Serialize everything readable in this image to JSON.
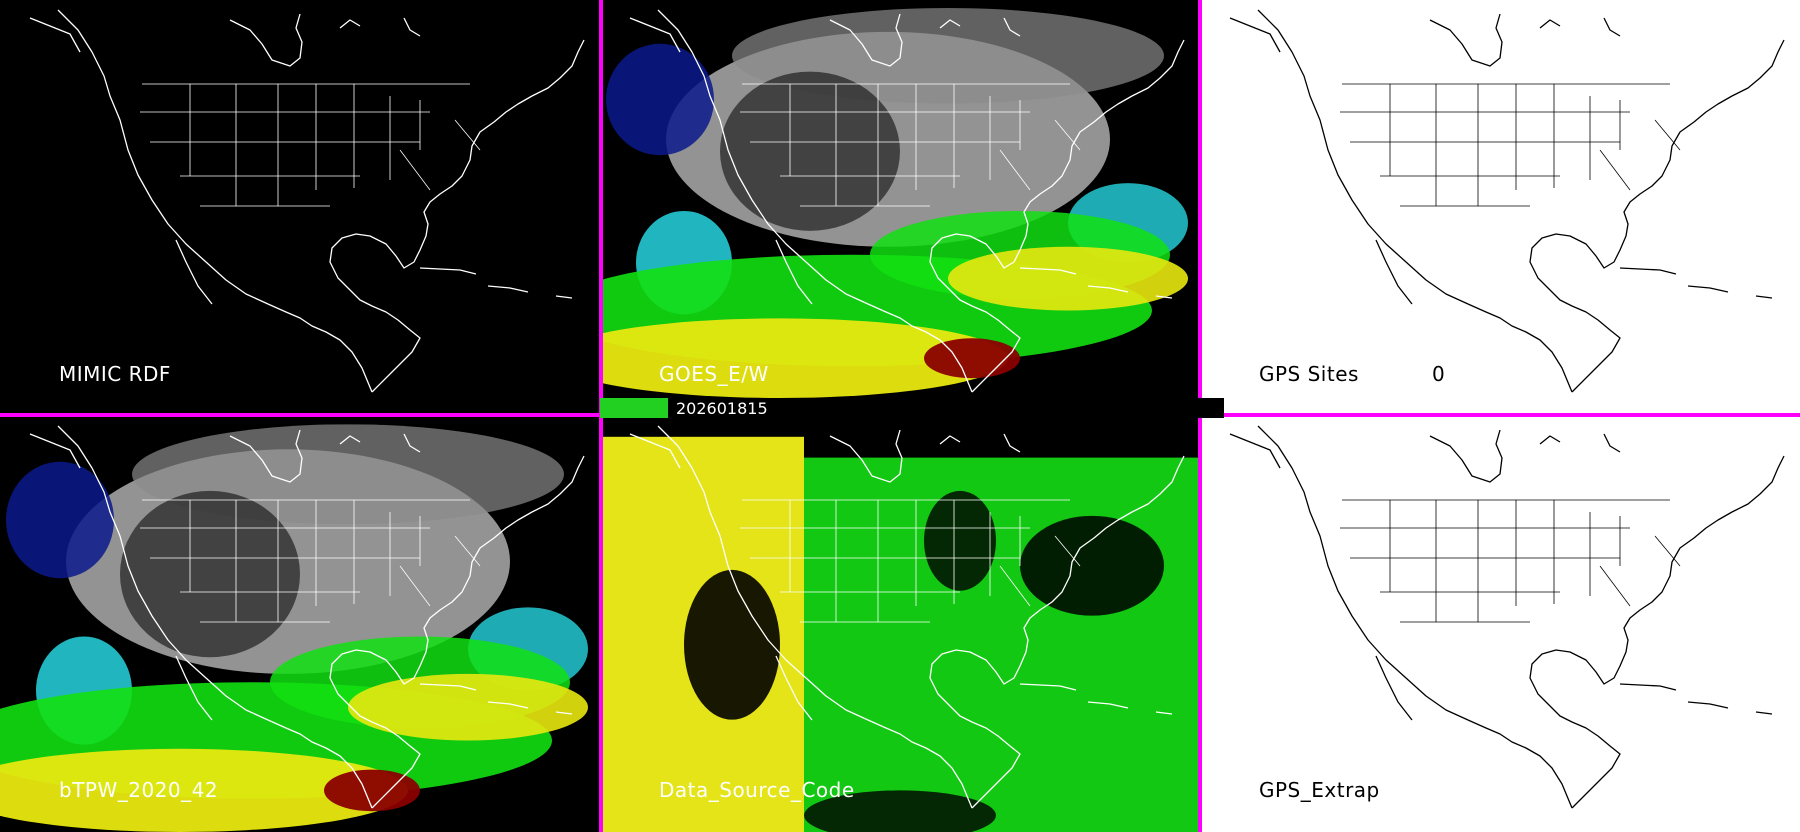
{
  "panels": [
    {
      "id": "p1",
      "label": "MIMIC RDF",
      "theme": "dark",
      "field": "none"
    },
    {
      "id": "p2",
      "label": "GOES_E/W",
      "theme": "dark",
      "field": "tpw"
    },
    {
      "id": "p3",
      "label": "GPS Sites",
      "value": "0",
      "theme": "light",
      "field": "none"
    },
    {
      "id": "p4",
      "label": "bTPW_2020_42",
      "theme": "dark",
      "field": "tpw"
    },
    {
      "id": "p5",
      "label": "Data_Source_Code",
      "theme": "dark",
      "field": "source"
    },
    {
      "id": "p6",
      "label": "GPS_Extrap",
      "theme": "light",
      "field": "none"
    }
  ],
  "timestamp": "202601815",
  "colors": {
    "separator": "#ff00ff",
    "background_dark": "#000000",
    "background_light": "#ffffff",
    "map_lines_dark": "#ffffff",
    "map_lines_light": "#000000",
    "tpw_scale": [
      "#0a1a8c",
      "#27d6e0",
      "#12e012",
      "#e8e810",
      "#c8a000",
      "#8a0000"
    ],
    "tpw_dry_gray": "#b8b8b8",
    "source_yellow": "#e4e418",
    "source_green": "#12c812"
  }
}
